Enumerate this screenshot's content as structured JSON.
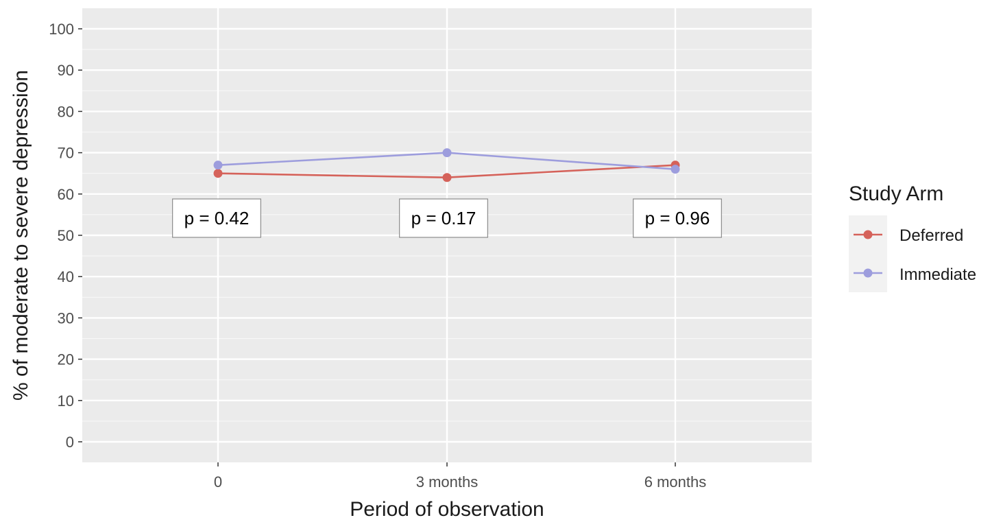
{
  "chart_data": {
    "type": "line",
    "title": "",
    "xlabel": "Period of observation",
    "ylabel": "% of moderate to severe depression",
    "categories": [
      "0",
      "3 months",
      "6 months"
    ],
    "ylim": [
      0,
      100
    ],
    "yticks": [
      0,
      10,
      20,
      30,
      40,
      50,
      60,
      70,
      80,
      90,
      100
    ],
    "grid": true,
    "legend": {
      "title": "Study Arm",
      "position": "right"
    },
    "series": [
      {
        "name": "Deferred",
        "values": [
          65,
          64,
          67
        ],
        "color": "#d5625a"
      },
      {
        "name": "Immediate",
        "values": [
          67,
          70,
          66
        ],
        "color": "#9d9ddd"
      }
    ],
    "annotations": [
      {
        "category": "0",
        "text": "p = 0.42"
      },
      {
        "category": "3 months",
        "text": "p = 0.17"
      },
      {
        "category": "6 months",
        "text": "p = 0.96"
      }
    ]
  }
}
